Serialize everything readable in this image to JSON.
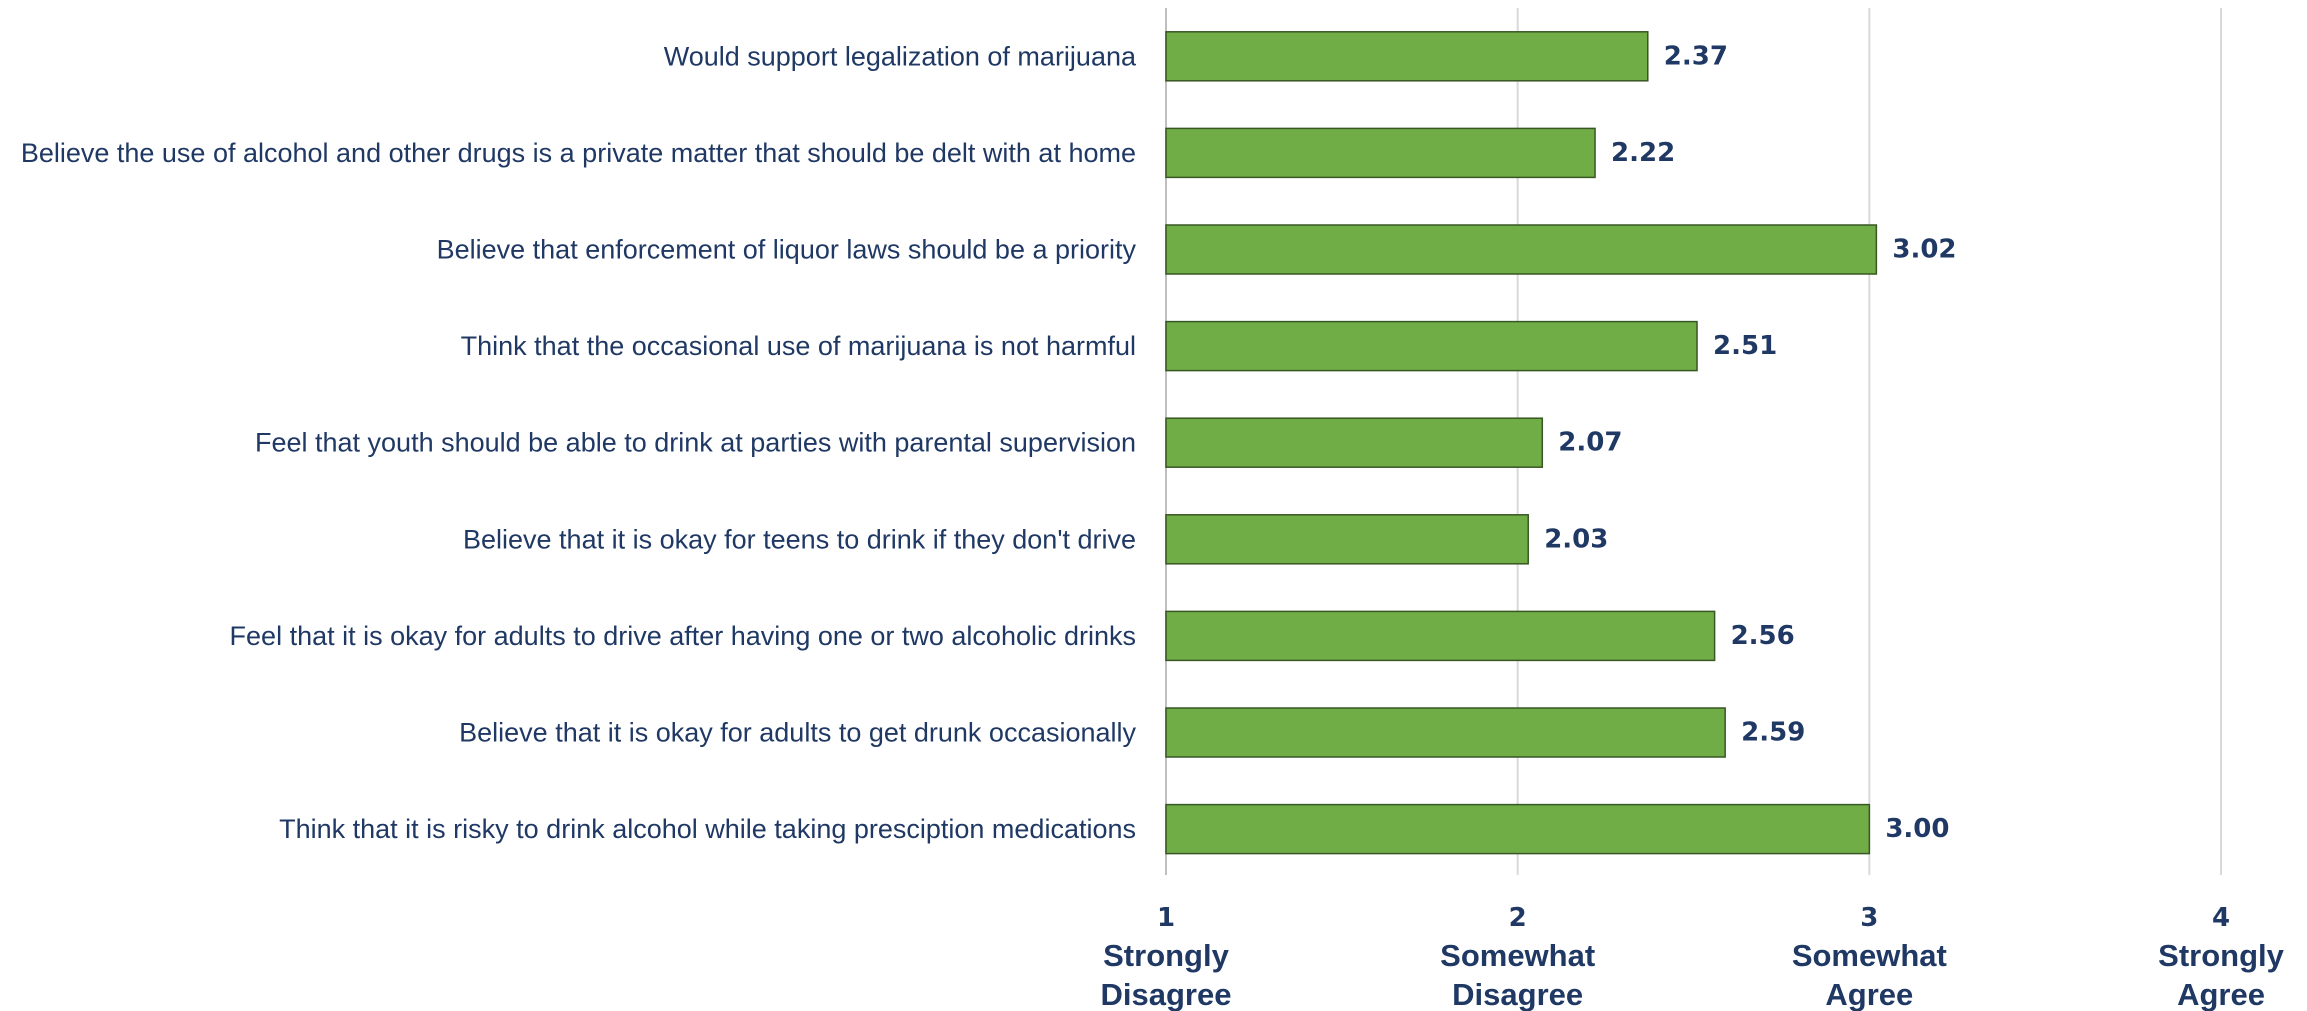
{
  "chart_data": {
    "type": "bar",
    "orientation": "horizontal",
    "categories": [
      "Would support legalization of marijuana",
      "Believe the use of alcohol and other drugs is a private matter that should be delt with at home",
      "Believe that enforcement of liquor laws should be a priority",
      "Think that the occasional use of marijuana is not harmful",
      "Feel that youth should be able to drink at parties with parental supervision",
      "Believe that it is okay for teens to drink if they don't drive",
      "Feel that it is okay for adults to drive after having one or two alcoholic drinks",
      "Believe that it is okay for adults to get drunk occasionally",
      "Think that it is risky to drink alcohol while taking presciption medications"
    ],
    "values": [
      2.37,
      2.22,
      3.02,
      2.51,
      2.07,
      2.03,
      2.56,
      2.59,
      3.0
    ],
    "value_labels": [
      "2.37",
      "2.22",
      "3.02",
      "2.51",
      "2.07",
      "2.03",
      "2.56",
      "2.59",
      "3.00"
    ],
    "xlim": [
      1,
      4
    ],
    "x_ticks": [
      {
        "value": 1,
        "number": "1",
        "line1": "Strongly",
        "line2": "Disagree"
      },
      {
        "value": 2,
        "number": "2",
        "line1": "Somewhat",
        "line2": "Disagree"
      },
      {
        "value": 3,
        "number": "3",
        "line1": "Somewhat",
        "line2": "Agree"
      },
      {
        "value": 4,
        "number": "4",
        "line1": "Strongly",
        "line2": "Agree"
      }
    ],
    "grid": true,
    "legend": "none",
    "bar_color": "#70ad47",
    "bar_border_color": "#385723",
    "text_color": "#1f3864"
  }
}
